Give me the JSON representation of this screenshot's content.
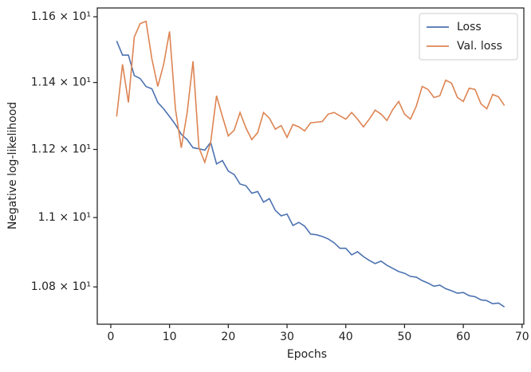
{
  "chart_data": {
    "type": "line",
    "x_label": "Epochs",
    "y_label": "Negative log-likelihood",
    "log_y": true,
    "grid": false,
    "legend": "upper right",
    "x": [
      1,
      2,
      3,
      4,
      5,
      6,
      7,
      8,
      9,
      10,
      11,
      12,
      13,
      14,
      15,
      16,
      17,
      18,
      19,
      20,
      21,
      22,
      23,
      24,
      25,
      26,
      27,
      28,
      29,
      30,
      31,
      32,
      33,
      34,
      35,
      36,
      37,
      38,
      39,
      40,
      41,
      42,
      43,
      44,
      45,
      46,
      47,
      48,
      49,
      50,
      51,
      52,
      53,
      54,
      55,
      56,
      57,
      58,
      59,
      60,
      61,
      62,
      63,
      64,
      65,
      66,
      67
    ],
    "series": [
      {
        "name": "Loss",
        "color": "#4c72b0",
        "values": [
          11.526,
          11.483,
          11.483,
          11.421,
          11.412,
          11.388,
          11.381,
          11.34,
          11.321,
          11.298,
          11.274,
          11.245,
          11.229,
          11.205,
          11.202,
          11.198,
          11.221,
          11.157,
          11.167,
          11.136,
          11.126,
          11.098,
          11.093,
          11.071,
          11.076,
          11.045,
          11.055,
          11.021,
          11.005,
          11.01,
          10.977,
          10.986,
          10.975,
          10.952,
          10.95,
          10.945,
          10.938,
          10.927,
          10.911,
          10.911,
          10.892,
          10.901,
          10.887,
          10.876,
          10.867,
          10.874,
          10.862,
          10.853,
          10.844,
          10.839,
          10.83,
          10.828,
          10.818,
          10.811,
          10.802,
          10.805,
          10.795,
          10.789,
          10.782,
          10.784,
          10.775,
          10.772,
          10.763,
          10.761,
          10.752,
          10.754,
          10.743
        ]
      },
      {
        "name": "Val. loss",
        "color": "#dd8452",
        "values": [
          11.298,
          11.455,
          11.34,
          11.538,
          11.579,
          11.586,
          11.471,
          11.388,
          11.455,
          11.555,
          11.321,
          11.205,
          11.31,
          11.464,
          11.205,
          11.162,
          11.221,
          11.36,
          11.298,
          11.24,
          11.257,
          11.31,
          11.264,
          11.229,
          11.25,
          11.31,
          11.293,
          11.26,
          11.271,
          11.236,
          11.274,
          11.267,
          11.255,
          11.279,
          11.281,
          11.283,
          11.305,
          11.31,
          11.3,
          11.29,
          11.31,
          11.29,
          11.267,
          11.29,
          11.317,
          11.305,
          11.286,
          11.319,
          11.343,
          11.305,
          11.29,
          11.329,
          11.388,
          11.379,
          11.355,
          11.36,
          11.407,
          11.398,
          11.355,
          11.343,
          11.383,
          11.379,
          11.336,
          11.321,
          11.364,
          11.357,
          11.331
        ]
      }
    ],
    "xlim": [
      -2.3,
      70.3
    ],
    "xticks": [
      0,
      10,
      20,
      30,
      40,
      50,
      60,
      70
    ],
    "ylim": [
      10.694,
      11.627
    ],
    "yticks": [
      {
        "value": 11.6,
        "label": "1.16 × 10¹"
      },
      {
        "value": 11.4,
        "label": "1.14 × 10¹"
      },
      {
        "value": 11.2,
        "label": "1.12 × 10¹"
      },
      {
        "value": 11.0,
        "label": "1.1 × 10¹"
      },
      {
        "value": 10.8,
        "label": "1.08 × 10¹"
      }
    ]
  }
}
